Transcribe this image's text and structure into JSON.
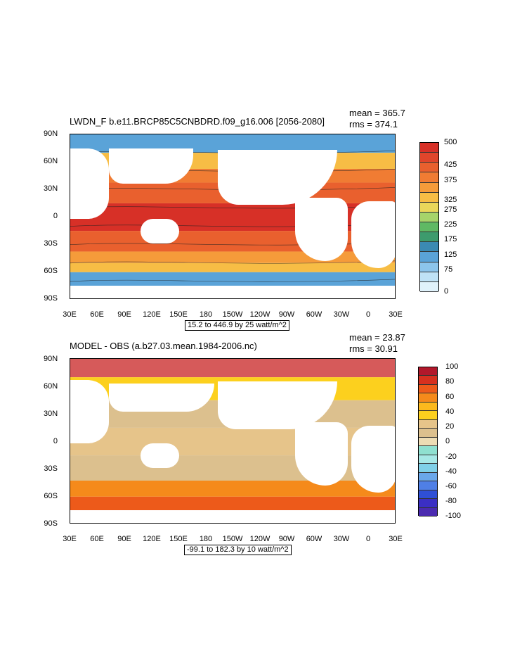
{
  "chart_data": [
    {
      "type": "heatmap",
      "title": "LWDN_F b.e11.BRCP85C5CNBDRD.f09_g16.006 [2056-2080]",
      "stats": {
        "mean": "mean = 365.7",
        "rms": "rms = 374.1"
      },
      "info": "15.2 to 446.9 by 25 watt/m^2",
      "x_ticks": [
        "30E",
        "60E",
        "90E",
        "120E",
        "150E",
        "180",
        "150W",
        "120W",
        "90W",
        "60W",
        "30W",
        "0",
        "30E"
      ],
      "y_ticks": [
        "90N",
        "60N",
        "30N",
        "0",
        "30S",
        "60S",
        "90S"
      ],
      "colorbar": {
        "labels": [
          "500",
          "425",
          "375",
          "325",
          "275",
          "225",
          "175",
          "125",
          "75",
          "0"
        ],
        "colors": [
          "#d73027",
          "#e0452b",
          "#e9602e",
          "#f07c33",
          "#f59b3a",
          "#f7bd45",
          "#ead75a",
          "#a6d46a",
          "#5fb964",
          "#3d9b6d",
          "#3b8ab2",
          "#5aa3d8",
          "#8cc5ec",
          "#bfe2f6",
          "#e0f2fb"
        ]
      },
      "bands": [
        {
          "lat": "80N",
          "color": "#5aa3d8"
        },
        {
          "lat": "60N",
          "color": "#f7bd45"
        },
        {
          "lat": "45N",
          "color": "#f07c33"
        },
        {
          "lat": "30N",
          "color": "#e9602e"
        },
        {
          "lat": "0",
          "color": "#d73027"
        },
        {
          "lat": "30S",
          "color": "#e9602e"
        },
        {
          "lat": "45S",
          "color": "#f59b3a"
        },
        {
          "lat": "55S",
          "color": "#f7bd45"
        },
        {
          "lat": "65S",
          "color": "#5aa3d8"
        }
      ]
    },
    {
      "type": "heatmap",
      "title": "MODEL - OBS (a.b27.03.mean.1984-2006.nc)",
      "stats": {
        "mean": "mean = 23.87",
        "rms": "rms = 30.91"
      },
      "info": "-99.1 to 182.3 by 10 watt/m^2",
      "x_ticks": [
        "30E",
        "60E",
        "90E",
        "120E",
        "150E",
        "180",
        "150W",
        "120W",
        "90W",
        "60W",
        "30W",
        "0",
        "30E"
      ],
      "y_ticks": [
        "90N",
        "60N",
        "30N",
        "0",
        "30S",
        "60S",
        "90S"
      ],
      "colorbar": {
        "labels": [
          "100",
          "80",
          "60",
          "40",
          "20",
          "0",
          "-20",
          "-40",
          "-60",
          "-80",
          "-100"
        ],
        "colors": [
          "#b2182b",
          "#d6301f",
          "#ed5a1a",
          "#f58a1b",
          "#fbb91d",
          "#fcd01e",
          "#e6c48a",
          "#dcc08e",
          "#eddcb4",
          "#8fe0d0",
          "#a6e8e6",
          "#7fd0e8",
          "#6aa7ea",
          "#4f7fe6",
          "#2f4fd6",
          "#3b2fc4",
          "#4b2bb0"
        ]
      },
      "bands": [
        {
          "lat": "80N",
          "color": "#d65a5a"
        },
        {
          "lat": "60N",
          "color": "#fcd01e"
        },
        {
          "lat": "30N",
          "color": "#dcc08e"
        },
        {
          "lat": "0",
          "color": "#e6c48a"
        },
        {
          "lat": "30S",
          "color": "#dcc08e"
        },
        {
          "lat": "55S",
          "color": "#f58a1b"
        },
        {
          "lat": "65S",
          "color": "#ed5a1a"
        }
      ]
    }
  ]
}
